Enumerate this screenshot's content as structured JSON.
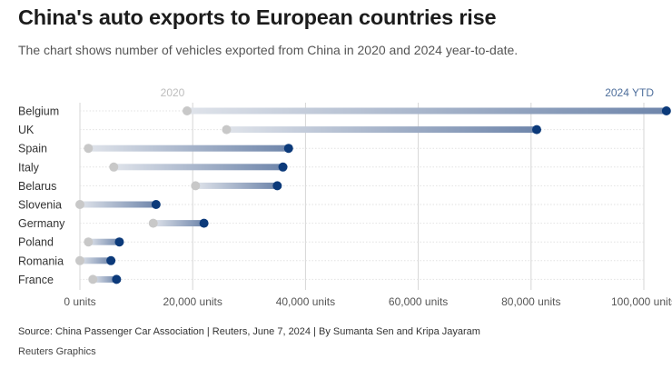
{
  "title": "China's auto exports to European countries rise",
  "subtitle": "The chart shows number of vehicles exported from China in 2020 and 2024 year-to-date.",
  "source": "Source: China Passenger Car Association | Reuters, June 7, 2024 | By Sumanta Sen and Kripa Jayaram",
  "credit": "Reuters Graphics",
  "colors": {
    "start": "#c8c8c8",
    "end": "#0c3a7a",
    "grid": "#d6d6d6"
  },
  "chart_data": {
    "type": "dumbbell",
    "title": "China's auto exports to European countries rise",
    "xlabel": "",
    "ylabel": "",
    "xlim": [
      0,
      100000
    ],
    "xticks": [
      0,
      20000,
      40000,
      60000,
      80000,
      100000
    ],
    "xtick_labels": [
      "0 units",
      "20,000 units",
      "40,000 units",
      "60,000 units",
      "80,000 units",
      "100,000 units"
    ],
    "series_labels": {
      "start": "2020",
      "end": "2024 YTD"
    },
    "categories": [
      "Belgium",
      "UK",
      "Spain",
      "Italy",
      "Belarus",
      "Slovenia",
      "Germany",
      "Poland",
      "Romania",
      "France"
    ],
    "series": [
      {
        "name": "2020",
        "values": [
          19000,
          26000,
          1500,
          6000,
          20500,
          0,
          13000,
          1500,
          0,
          2300
        ]
      },
      {
        "name": "2024 YTD",
        "values": [
          104000,
          81000,
          37000,
          36000,
          35000,
          13500,
          22000,
          7000,
          5500,
          6500
        ]
      }
    ]
  }
}
